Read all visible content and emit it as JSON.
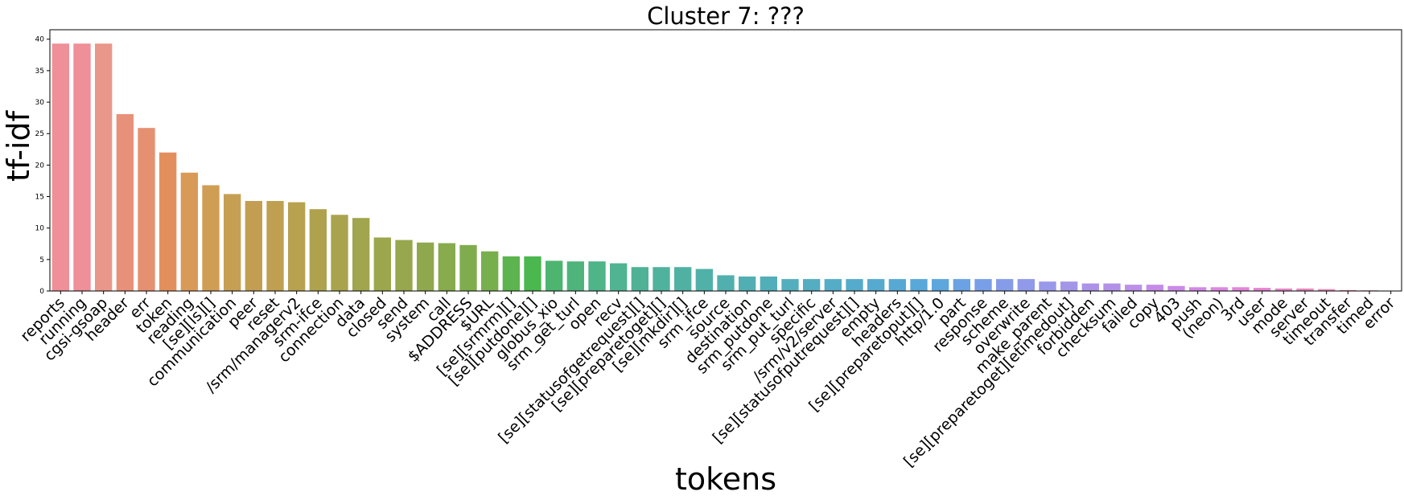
{
  "chart_data": {
    "type": "bar",
    "title": "Cluster 7: ???",
    "xlabel": "tokens",
    "ylabel": "tf-idf",
    "ylim": [
      0,
      41.5
    ],
    "yticks": [
      0,
      5,
      10,
      15,
      20,
      25,
      30,
      35,
      40
    ],
    "grid": false,
    "legend": "none",
    "categories": [
      "reports",
      "running",
      "cgsi-gsoap",
      "header",
      "err",
      "token",
      "reading",
      "[se][ls][]",
      "communication",
      "peer",
      "reset",
      "/srm/managerv2",
      "srm-ifce",
      "connection",
      "data",
      "closed",
      "send",
      "system",
      "call",
      "$ADDRESS",
      "$URL",
      "[se][srmrm][]",
      "[se][putdone][]",
      "globus_xio",
      "srm_get_turl",
      "open",
      "recv",
      "[se][statusofgetrequest][]",
      "[se][preparetoget][]",
      "[se][mkdir][]",
      "srm_ifce",
      "source",
      "destination",
      "srm_putdone",
      "srm_put_turl",
      "specific",
      "/srm/v2/server",
      "[se][statusofputrequest][]",
      "empty",
      "headers",
      "[se][preparetoput][]",
      "http/1.0",
      "part",
      "response",
      "scheme",
      "overwrite",
      "make_parent",
      "[se][preparetoget][etimedout]",
      "forbidden",
      "checksum",
      "failed",
      "copy",
      "403",
      "push",
      "(neon)",
      "3rd",
      "user",
      "mode",
      "server",
      "timeout",
      "transfer",
      "timed",
      "error"
    ],
    "values": [
      39.3,
      39.3,
      39.3,
      28.1,
      25.9,
      22.0,
      18.8,
      16.8,
      15.4,
      14.3,
      14.3,
      14.1,
      13.0,
      12.1,
      11.6,
      8.5,
      8.1,
      7.7,
      7.6,
      7.3,
      6.3,
      5.5,
      5.5,
      4.8,
      4.7,
      4.7,
      4.4,
      3.8,
      3.8,
      3.8,
      3.5,
      2.5,
      2.3,
      2.3,
      1.9,
      1.9,
      1.9,
      1.9,
      1.9,
      1.9,
      1.9,
      1.9,
      1.9,
      1.9,
      1.9,
      1.9,
      1.5,
      1.5,
      1.2,
      1.2,
      1.0,
      1.0,
      0.8,
      0.6,
      0.6,
      0.6,
      0.5,
      0.4,
      0.4,
      0.3,
      0.15,
      0.1,
      0.05
    ],
    "colors": [
      "#ef8f98",
      "#ef8f98",
      "#e9978a",
      "#e8917a",
      "#e69072",
      "#e38f5d",
      "#d99a57",
      "#d09d55",
      "#c69f53",
      "#c39e52",
      "#bea050",
      "#b8a14f",
      "#afa24e",
      "#a9a34e",
      "#a1a54d",
      "#9ca64d",
      "#97a74d",
      "#90a84d",
      "#87ab4d",
      "#7fad4d",
      "#78af4d",
      "#5bb44e",
      "#4ab74f",
      "#4db56f",
      "#4fb47c",
      "#4fb488",
      "#50b391",
      "#4fb296",
      "#4fb29d",
      "#50b1a3",
      "#50b1a8",
      "#51b0ad",
      "#51afb3",
      "#52aeb8",
      "#53aebd",
      "#54adc1",
      "#55acc6",
      "#55abcb",
      "#56aad0",
      "#57a9d4",
      "#58a8d9",
      "#5ea6de",
      "#6aa2e4",
      "#789fe7",
      "#859ce9",
      "#909ae9",
      "#9a98e9",
      "#a396e8",
      "#ac93e8",
      "#b491e8",
      "#bc8fe8",
      "#c48ce8",
      "#cc8ae8",
      "#d488e6",
      "#dc86e0",
      "#e284d9",
      "#e684d1",
      "#e886c8",
      "#ea87c0",
      "#ec88b8",
      "#ed8ab0",
      "#ee8ba8",
      "#ef8da1"
    ]
  }
}
